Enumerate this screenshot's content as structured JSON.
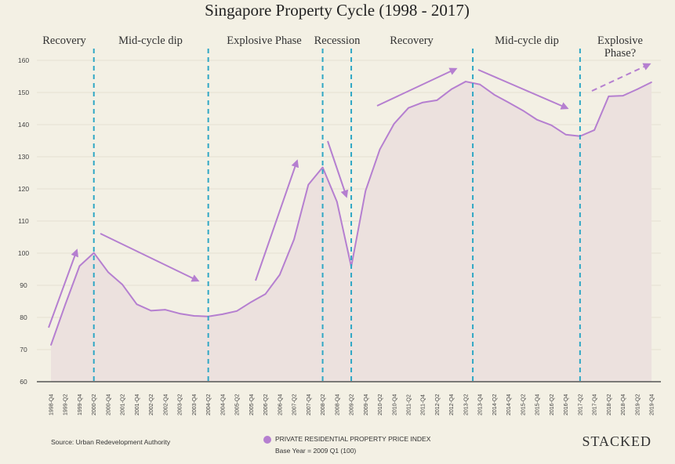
{
  "chart_data": {
    "type": "area",
    "title": "Singapore Property Cycle (1998 - 2017)",
    "xlabel": "",
    "ylabel": "",
    "ylim": [
      60,
      160
    ],
    "yticks": [
      60,
      70,
      80,
      90,
      100,
      110,
      120,
      130,
      140,
      150,
      160
    ],
    "grid": true,
    "categories": [
      "1998-Q4",
      "1999-Q2",
      "1999-Q4",
      "2000-Q2",
      "2000-Q4",
      "2001-Q2",
      "2001-Q4",
      "2002-Q2",
      "2002-Q4",
      "2003-Q2",
      "2003-Q4",
      "2004-Q2",
      "2004-Q4",
      "2005-Q2",
      "2005-Q4",
      "2006-Q2",
      "2006-Q4",
      "2007-Q2",
      "2007-Q4",
      "2008-Q2",
      "2008-Q4",
      "2009-Q2",
      "2009-Q4",
      "2010-Q2",
      "2010-Q4",
      "2011-Q2",
      "2011-Q4",
      "2012-Q2",
      "2012-Q4",
      "2013-Q2",
      "2013-Q4",
      "2014-Q2",
      "2014-Q4",
      "2015-Q2",
      "2015-Q4",
      "2016-Q2",
      "2016-Q4",
      "2017-Q2",
      "2017-Q4",
      "2018-Q2",
      "2018-Q4",
      "2019-Q2",
      "2019-Q4"
    ],
    "series": [
      {
        "name": "PRIVATE RESIDENTIAL PROPERTY PRICE INDEX",
        "values": [
          71.4,
          84,
          96,
          100.1,
          94.1,
          90.2,
          84.1,
          82.1,
          82.4,
          81.2,
          80.5,
          80.3,
          81,
          82,
          84.8,
          87.3,
          93.3,
          104.3,
          121.3,
          126.7,
          116,
          95.8,
          119.4,
          132.3,
          140.3,
          145.2,
          146.9,
          147.6,
          151,
          153.4,
          152.5,
          149.3,
          146.9,
          144.4,
          141.5,
          139.8,
          136.9,
          136.4,
          138.3,
          148.8,
          149,
          151,
          153.2
        ]
      }
    ],
    "phase_boundaries": [
      "2000-Q2",
      "2004-Q2",
      "2008-Q2",
      "2009-Q2",
      "2013-Q3",
      "2017-Q2"
    ],
    "phases": [
      "Recovery",
      "Mid-cycle dip",
      "Explosive Phase",
      "Recession",
      "Recovery",
      "Mid-cycle dip",
      "Explosive Phase?"
    ],
    "legend": {
      "label": "PRIVATE RESIDENTIAL PROPERTY PRICE INDEX",
      "note": "Base Year = 2009 Q1 (100)",
      "placement": "bottom-center"
    },
    "source": "Source: Urban Redevelopment Authority",
    "brand": "STACKED",
    "colors": {
      "line": "#b57fd0",
      "fill": "#ece1de",
      "divider": "#2fa7c5",
      "background": "#f3f0e4"
    }
  }
}
